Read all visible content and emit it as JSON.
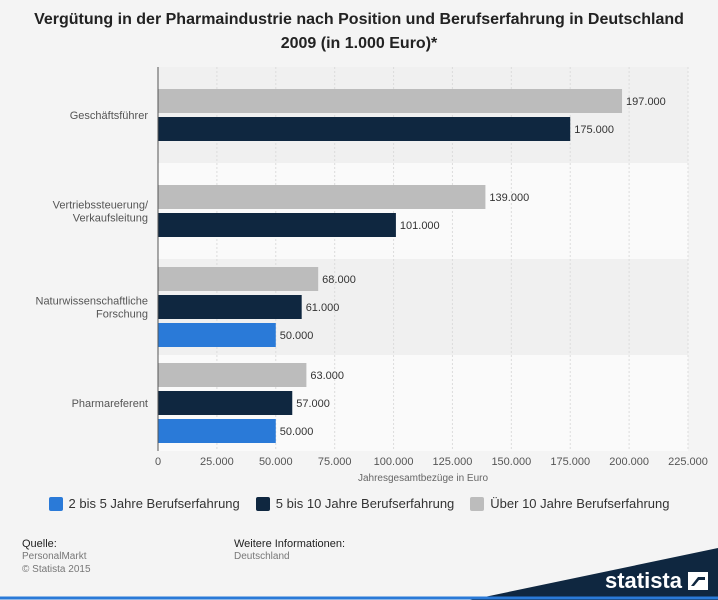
{
  "title": "Vergütung in der Pharmaindustrie nach Position und Berufserfahrung in Deutschland 2009 (in 1.000 Euro)*",
  "chart_data": {
    "type": "bar",
    "orientation": "horizontal",
    "categories": [
      "Geschäftsführer",
      "Vertriebssteuerung/ Verkaufsleitung",
      "Naturwissenschaftliche Forschung",
      "Pharmareferent"
    ],
    "category_lines": [
      [
        "Geschäftsführer"
      ],
      [
        "Vertriebssteuerung/",
        "Verkaufsleitung"
      ],
      [
        "Naturwissenschaftliche",
        "Forschung"
      ],
      [
        "Pharmareferent"
      ]
    ],
    "series": [
      {
        "name": "Über 10 Jahre Berufserfahrung",
        "color": "#bcbcbc",
        "values": [
          197000,
          139000,
          68000,
          63000
        ]
      },
      {
        "name": "5 bis 10 Jahre Berufserfahrung",
        "color": "#0f2740",
        "values": [
          175000,
          101000,
          61000,
          57000
        ]
      },
      {
        "name": "2 bis 5 Jahre Berufserfahrung",
        "color": "#2a7ad8",
        "values": [
          null,
          null,
          50000,
          50000
        ]
      }
    ],
    "value_labels": [
      [
        "197.000",
        "139.000",
        "68.000",
        "63.000"
      ],
      [
        "175.000",
        "101.000",
        "61.000",
        "57.000"
      ],
      [
        null,
        null,
        "50.000",
        "50.000"
      ]
    ],
    "xlim": [
      0,
      225000
    ],
    "xticks": [
      0,
      25000,
      50000,
      75000,
      100000,
      125000,
      150000,
      175000,
      200000,
      225000
    ],
    "xtick_labels": [
      "0",
      "25.000",
      "50.000",
      "75.000",
      "100.000",
      "125.000",
      "150.000",
      "175.000",
      "200.000",
      "225.000"
    ],
    "xlabel": "Jahresgesamtbezüge in Euro",
    "ylabel": "",
    "grid": true,
    "legend_position": "bottom"
  },
  "legend": [
    {
      "label": "2 bis 5 Jahre Berufserfahrung",
      "color": "#2a7ad8"
    },
    {
      "label": "5 bis 10 Jahre Berufserfahrung",
      "color": "#0f2740"
    },
    {
      "label": "Über 10 Jahre Berufserfahrung",
      "color": "#bcbcbc"
    }
  ],
  "footer": {
    "source_heading": "Quelle:",
    "source_lines": [
      "PersonalMarkt",
      "© Statista 2015"
    ],
    "info_heading": "Weitere Informationen:",
    "info_lines": [
      "Deutschland"
    ]
  },
  "logo": {
    "text": "statista",
    "color": "#0f2740"
  }
}
